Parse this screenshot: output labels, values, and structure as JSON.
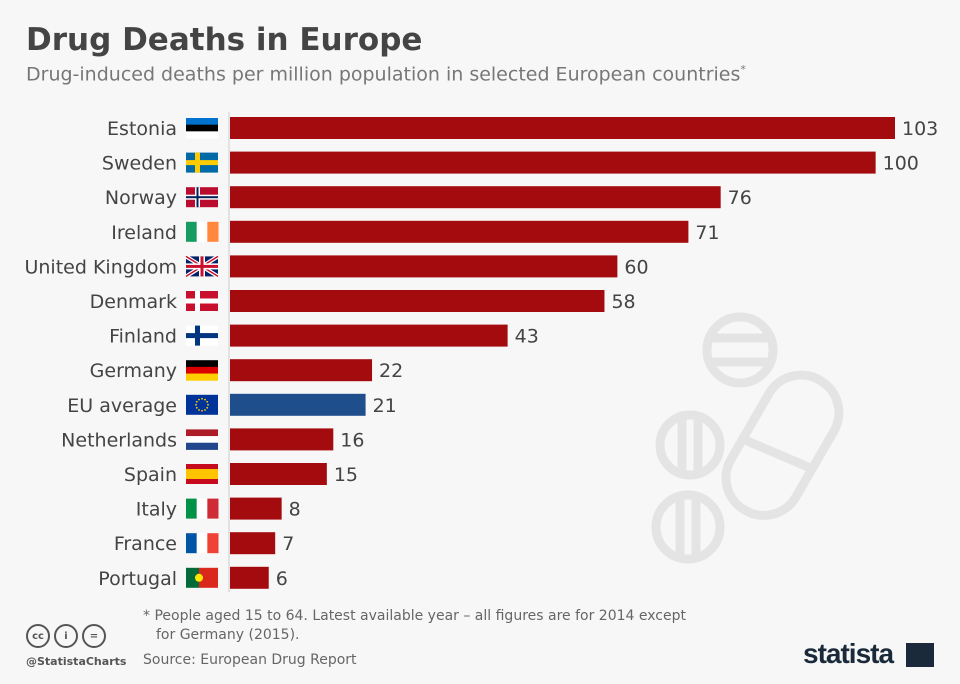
{
  "title": "Drug Deaths in Europe",
  "subtitle": "Drug-induced deaths per million population in selected European countries",
  "subtitle_mark": "*",
  "note_line1": "* People aged 15 to 64. Latest available year – all figures are for 2014 except",
  "note_line2": "for Germany (2015).",
  "source": "Source: European Drug Report",
  "handle": "@StatistaCharts",
  "license_icons": [
    "cc",
    "i",
    "="
  ],
  "logo": "statista",
  "colors": {
    "bar": "#a30b0f",
    "eu_bar": "#1f4e8c",
    "text": "#444444"
  },
  "chart_data": {
    "type": "bar",
    "orientation": "horizontal",
    "categories": [
      "Estonia",
      "Sweden",
      "Norway",
      "Ireland",
      "United Kingdom",
      "Denmark",
      "Finland",
      "Germany",
      "EU average",
      "Netherlands",
      "Spain",
      "Italy",
      "France",
      "Portugal"
    ],
    "values": [
      103,
      100,
      76,
      71,
      60,
      58,
      43,
      22,
      21,
      16,
      15,
      8,
      7,
      6
    ],
    "highlight": "EU average",
    "xlim": [
      0,
      103
    ],
    "grid": false
  }
}
